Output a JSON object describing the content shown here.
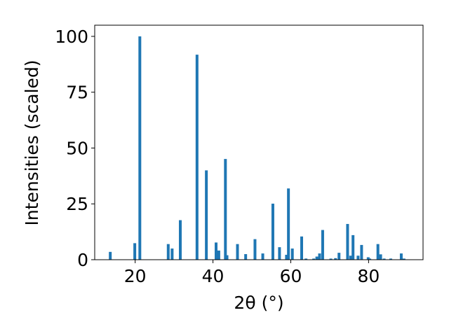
{
  "chart_data": {
    "type": "bar",
    "title": "",
    "xlabel": "2θ (°)",
    "ylabel": "Intensities (scaled)",
    "xlim": [
      9.6,
      94.0
    ],
    "ylim": [
      0,
      105
    ],
    "xticks": [
      20,
      40,
      60,
      80
    ],
    "yticks": [
      0,
      25,
      50,
      75,
      100
    ],
    "grid": false,
    "bar_color": "#1f77b4",
    "x": [
      13.6,
      19.9,
      21.2,
      28.5,
      29.5,
      31.6,
      35.9,
      38.3,
      40.8,
      41.5,
      43.2,
      43.6,
      46.3,
      48.4,
      50.8,
      52.8,
      55.4,
      57.1,
      58.9,
      59.4,
      60.4,
      62.8,
      63.9,
      65.9,
      66.7,
      67.4,
      68.2,
      70.3,
      71.5,
      72.4,
      74.6,
      75.4,
      76.0,
      77.3,
      78.2,
      79.9,
      80.3,
      82.4,
      83.1,
      84.0,
      85.7,
      88.4,
      89.1
    ],
    "values": [
      3.5,
      7.4,
      100,
      7,
      5,
      17.7,
      91.8,
      40,
      7.7,
      4.1,
      45.1,
      2,
      7,
      2.5,
      9.2,
      2.8,
      25.1,
      5.6,
      2.2,
      31.9,
      5,
      10.4,
      0.5,
      0.5,
      1.4,
      2.8,
      13.3,
      0.5,
      0.7,
      3.1,
      16,
      1.8,
      11,
      1.8,
      6.6,
      1.1,
      0.5,
      7,
      2.4,
      0.5,
      0.5,
      2.8,
      0.5
    ]
  }
}
